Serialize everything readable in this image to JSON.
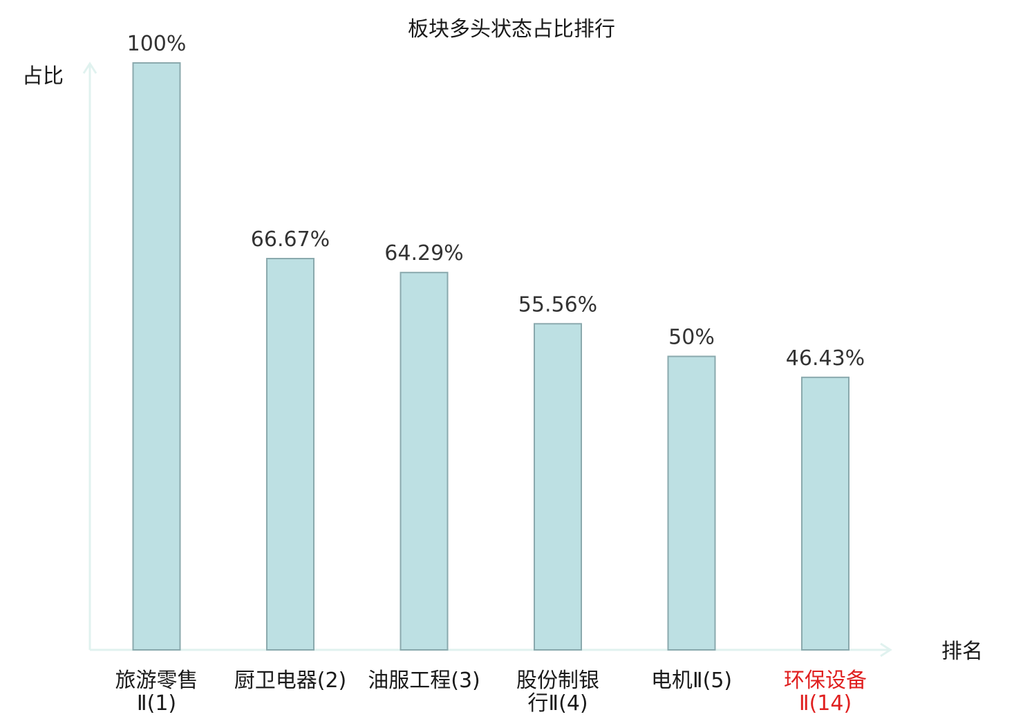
{
  "chart_data": {
    "type": "bar",
    "title": "板块多头状态占比排行",
    "ylabel": "占比",
    "xlabel": "排名",
    "categories": [
      [
        "旅游零售",
        "Ⅱ(1)"
      ],
      [
        "厨卫电器(2)"
      ],
      [
        "油服工程(3)"
      ],
      [
        "股份制银",
        "行Ⅱ(4)"
      ],
      [
        "电机Ⅱ(5)"
      ],
      [
        "环保设备",
        "Ⅱ(14)"
      ]
    ],
    "values": [
      100,
      66.67,
      64.29,
      55.56,
      50,
      46.43
    ],
    "value_labels": [
      "100%",
      "66.67%",
      "64.29%",
      "55.56%",
      "50%",
      "46.43%"
    ],
    "highlight_index": 5,
    "ylim": [
      0,
      100
    ],
    "grid": false,
    "legend": "none",
    "colors": {
      "bar_fill": "#bde0e3",
      "bar_stroke": "#8aa9ad",
      "axis": "#e0f2ef",
      "text": "#1a1a1a",
      "value_text": "#333333",
      "highlight": "#e02020"
    }
  }
}
